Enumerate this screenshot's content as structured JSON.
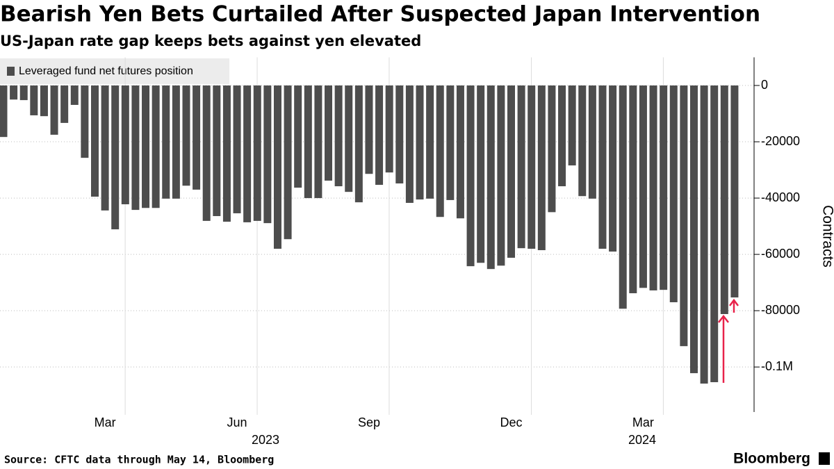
{
  "chart_data": {
    "type": "bar",
    "title": "Bearish Yen Bets Curtailed After Suspected Japan Intervention",
    "subtitle": "US-Japan rate gap keeps bets against yen elevated",
    "source": "Source: CFTC data through May 14,  Bloomberg",
    "brand": "Bloomberg",
    "y_axis_label": "Contracts",
    "series": [
      {
        "name": "Leveraged fund net futures position",
        "color": "#4d4d4d",
        "values": [
          -18300,
          -5000,
          -5200,
          -10600,
          -10900,
          -17500,
          -13300,
          -6900,
          -25700,
          -39500,
          -44400,
          -51100,
          -42200,
          -44200,
          -43500,
          -43500,
          -40200,
          -40200,
          -35600,
          -37000,
          -48100,
          -46400,
          -48400,
          -45400,
          -48600,
          -48100,
          -48900,
          -58000,
          -54600,
          -36300,
          -40000,
          -40000,
          -33800,
          -35800,
          -37800,
          -41500,
          -31400,
          -35300,
          -30900,
          -34800,
          -41700,
          -40500,
          -40200,
          -46700,
          -40700,
          -47200,
          -64200,
          -63000,
          -65200,
          -64000,
          -61200,
          -57800,
          -58000,
          -58500,
          -45000,
          -35800,
          -28400,
          -39300,
          -40200,
          -58000,
          -59000,
          -79300,
          -73800,
          -71900,
          -72800,
          -72600,
          -77000,
          -92600,
          -102200,
          -105900,
          -105400,
          -81200,
          -75300
        ]
      }
    ],
    "categories": [
      null,
      null,
      null,
      null,
      null,
      null,
      null,
      null,
      null,
      null,
      "Mar",
      null,
      null,
      null,
      null,
      null,
      null,
      null,
      null,
      null,
      null,
      null,
      null,
      "Jun",
      null,
      null,
      null,
      null,
      null,
      null,
      null,
      null,
      null,
      null,
      null,
      null,
      "Sep",
      null,
      null,
      null,
      null,
      null,
      null,
      null,
      null,
      null,
      null,
      null,
      null,
      null,
      "Dec",
      null,
      null,
      null,
      null,
      null,
      null,
      null,
      null,
      null,
      null,
      null,
      null,
      "Mar",
      null,
      null,
      null,
      null,
      null,
      null,
      null,
      null,
      null
    ],
    "x_group_labels": [
      "2023",
      "2024"
    ],
    "ylim": [
      -116000,
      10000
    ],
    "yticks": [
      0,
      -20000,
      -40000,
      -60000,
      -80000,
      {
        "value": -100000,
        "label": "-0.1M"
      }
    ],
    "grid": true
  }
}
